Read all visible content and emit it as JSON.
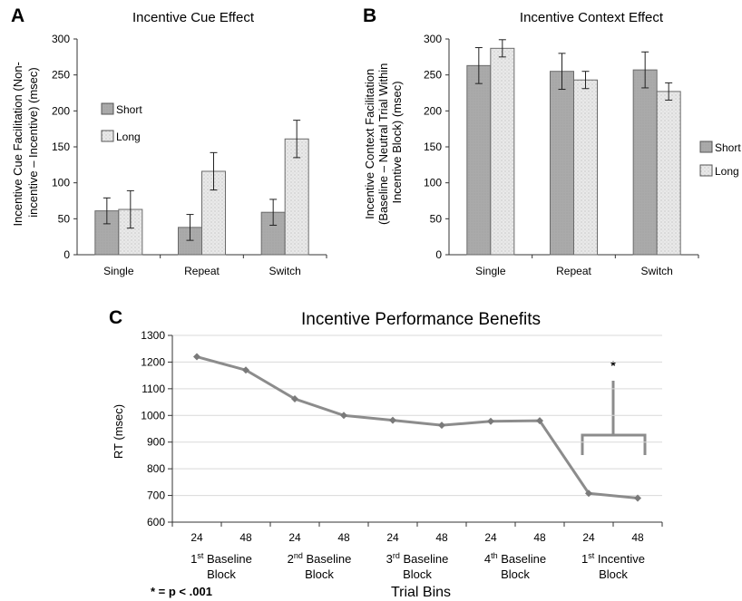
{
  "colors": {
    "short_fill": "#aaaaaa",
    "long_fill": "#e9e9e9",
    "line": "#8c8c8c",
    "axis": "#333333"
  },
  "panels": {
    "a": "A",
    "b": "B",
    "c": "C"
  },
  "legend": {
    "short": "Short",
    "long": "Long"
  },
  "chart_data": [
    {
      "type": "bar",
      "title": "Incentive Cue Effect",
      "ylabel_lines": [
        "Incentive Cue Facilitation (Non-",
        "incentive – Incentive)  (msec)"
      ],
      "categories": [
        "Single",
        "Repeat",
        "Switch"
      ],
      "ylim": [
        0,
        300
      ],
      "yticks": [
        0,
        50,
        100,
        150,
        200,
        250,
        300
      ],
      "legend_position": "left",
      "series": [
        {
          "name": "Short",
          "values": [
            61,
            38,
            59
          ],
          "errors": [
            18,
            18,
            18
          ]
        },
        {
          "name": "Long",
          "values": [
            63,
            116,
            161
          ],
          "errors": [
            26,
            26,
            26
          ]
        }
      ]
    },
    {
      "type": "bar",
      "title": "Incentive Context Effect",
      "ylabel_lines": [
        "Incentive Context Facilitation",
        "(Baseline – Neutral Trial Within",
        "Incentive Block) (msec)"
      ],
      "categories": [
        "Single",
        "Repeat",
        "Switch"
      ],
      "ylim": [
        0,
        300
      ],
      "yticks": [
        0,
        50,
        100,
        150,
        200,
        250,
        300
      ],
      "legend_position": "right",
      "series": [
        {
          "name": "Short",
          "values": [
            263,
            255,
            257
          ],
          "errors": [
            25,
            25,
            25
          ]
        },
        {
          "name": "Long",
          "values": [
            287,
            243,
            227
          ],
          "errors": [
            12,
            12,
            12
          ]
        }
      ]
    },
    {
      "type": "line",
      "title": "Incentive Performance Benefits",
      "ylabel": "RT (msec)",
      "xlabel": "Trial Bins",
      "x": [
        "24",
        "48",
        "24",
        "48",
        "24",
        "48",
        "24",
        "48",
        "24",
        "48"
      ],
      "values": [
        1220,
        1170,
        1062,
        1000,
        982,
        963,
        978,
        980,
        708,
        690
      ],
      "ylim": [
        600,
        1300
      ],
      "yticks": [
        600,
        700,
        800,
        900,
        1000,
        1100,
        1200,
        1300
      ],
      "groups": [
        {
          "sup_num": "1",
          "sup": "st",
          "label": "Baseline",
          "line2": "Block"
        },
        {
          "sup_num": "2",
          "sup": "nd",
          "label": "Baseline",
          "line2": "Block"
        },
        {
          "sup_num": "3",
          "sup": "rd",
          "label": "Baseline",
          "line2": "Block"
        },
        {
          "sup_num": "4",
          "sup": "th",
          "label": "Baseline",
          "line2": "Block"
        },
        {
          "sup_num": "1",
          "sup": "st",
          "label": "Incentive",
          "line2": "Block"
        }
      ],
      "significance_marker": "*",
      "footnote": "* = p < .001"
    }
  ]
}
